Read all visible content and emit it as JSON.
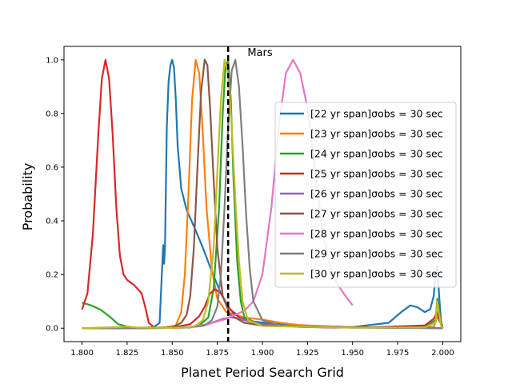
{
  "chart_data": {
    "type": "line",
    "title": "",
    "xlabel": "Planet Period Search Grid",
    "ylabel": "Probability",
    "xlim": [
      1.79,
      2.01
    ],
    "ylim": [
      -0.05,
      1.05
    ],
    "xticks": [
      "1.800",
      "1.825",
      "1.850",
      "1.875",
      "1.900",
      "1.925",
      "1.950",
      "1.975",
      "2.000"
    ],
    "yticks": [
      "0.0",
      "0.2",
      "0.4",
      "0.6",
      "0.8",
      "1.0"
    ],
    "grid": false,
    "legend_position": "center-right",
    "annotation": {
      "text": "Mars",
      "x": 1.9,
      "y": 1.02
    },
    "vline": {
      "x": 1.881,
      "style": "dashed",
      "color": "#000000"
    },
    "series": [
      {
        "name": "[22 yr span]σobs = 30 sec",
        "color": "#1f77b4",
        "points": [
          [
            1.8,
            0.0
          ],
          [
            1.82,
            0.0
          ],
          [
            1.835,
            0.002
          ],
          [
            1.84,
            0.005
          ],
          [
            1.843,
            0.02
          ],
          [
            1.845,
            0.31
          ],
          [
            1.8455,
            0.24
          ],
          [
            1.846,
            0.3
          ],
          [
            1.8465,
            0.53
          ],
          [
            1.847,
            0.75
          ],
          [
            1.848,
            0.92
          ],
          [
            1.849,
            0.98
          ],
          [
            1.85,
            1.0
          ],
          [
            1.851,
            0.97
          ],
          [
            1.852,
            0.85
          ],
          [
            1.853,
            0.68
          ],
          [
            1.855,
            0.52
          ],
          [
            1.858,
            0.44
          ],
          [
            1.862,
            0.38
          ],
          [
            1.867,
            0.3
          ],
          [
            1.872,
            0.21
          ],
          [
            1.877,
            0.13
          ],
          [
            1.882,
            0.07
          ],
          [
            1.888,
            0.04
          ],
          [
            1.895,
            0.025
          ],
          [
            1.905,
            0.017
          ],
          [
            1.92,
            0.01
          ],
          [
            1.95,
            0.004
          ],
          [
            1.97,
            0.02
          ],
          [
            1.977,
            0.06
          ],
          [
            1.982,
            0.085
          ],
          [
            1.986,
            0.078
          ],
          [
            1.99,
            0.06
          ],
          [
            1.993,
            0.07
          ],
          [
            1.995,
            0.12
          ],
          [
            1.996,
            0.2
          ],
          [
            1.997,
            0.23
          ],
          [
            1.998,
            0.12
          ],
          [
            1.999,
            0.03
          ],
          [
            2.0,
            0.0
          ]
        ]
      },
      {
        "name": "[23 yr span]σobs = 30 sec",
        "color": "#ff7f0e",
        "points": [
          [
            1.8,
            0.0
          ],
          [
            1.83,
            0.0
          ],
          [
            1.845,
            0.002
          ],
          [
            1.852,
            0.01
          ],
          [
            1.855,
            0.06
          ],
          [
            1.857,
            0.2
          ],
          [
            1.859,
            0.5
          ],
          [
            1.861,
            0.85
          ],
          [
            1.863,
            1.0
          ],
          [
            1.865,
            0.95
          ],
          [
            1.867,
            0.72
          ],
          [
            1.869,
            0.45
          ],
          [
            1.872,
            0.22
          ],
          [
            1.875,
            0.11
          ],
          [
            1.88,
            0.06
          ],
          [
            1.89,
            0.04
          ],
          [
            1.9,
            0.032
          ],
          [
            1.91,
            0.02
          ],
          [
            1.92,
            0.012
          ],
          [
            1.94,
            0.006
          ],
          [
            1.96,
            0.003
          ],
          [
            1.98,
            0.002
          ],
          [
            1.995,
            0.005
          ],
          [
            1.998,
            0.06
          ],
          [
            1.999,
            0.02
          ],
          [
            2.0,
            0.0
          ]
        ]
      },
      {
        "name": "[24 yr span]σobs = 30 sec",
        "color": "#2ca02c",
        "points": [
          [
            1.8,
            0.095
          ],
          [
            1.805,
            0.085
          ],
          [
            1.81,
            0.07
          ],
          [
            1.815,
            0.045
          ],
          [
            1.82,
            0.015
          ],
          [
            1.825,
            0.006
          ],
          [
            1.83,
            0.002
          ],
          [
            1.85,
            0.001
          ],
          [
            1.86,
            0.003
          ],
          [
            1.865,
            0.01
          ],
          [
            1.87,
            0.04
          ],
          [
            1.873,
            0.15
          ],
          [
            1.876,
            0.45
          ],
          [
            1.878,
            0.8
          ],
          [
            1.8795,
            0.97
          ],
          [
            1.881,
            1.0
          ],
          [
            1.8825,
            0.85
          ],
          [
            1.884,
            0.55
          ],
          [
            1.886,
            0.25
          ],
          [
            1.888,
            0.1
          ],
          [
            1.89,
            0.04
          ],
          [
            1.9,
            0.01
          ],
          [
            1.95,
            0.002
          ],
          [
            1.99,
            0.005
          ],
          [
            1.996,
            0.03
          ],
          [
            1.997,
            0.11
          ],
          [
            1.998,
            0.06
          ],
          [
            1.999,
            0.01
          ],
          [
            2.0,
            0.0
          ]
        ]
      },
      {
        "name": "[25 yr span]σobs = 30 sec",
        "color": "#d62728",
        "points": [
          [
            1.8,
            0.07
          ],
          [
            1.803,
            0.13
          ],
          [
            1.806,
            0.35
          ],
          [
            1.809,
            0.72
          ],
          [
            1.811,
            0.93
          ],
          [
            1.813,
            1.0
          ],
          [
            1.815,
            0.93
          ],
          [
            1.817,
            0.72
          ],
          [
            1.819,
            0.45
          ],
          [
            1.821,
            0.27
          ],
          [
            1.823,
            0.2
          ],
          [
            1.825,
            0.18
          ],
          [
            1.827,
            0.17
          ],
          [
            1.829,
            0.16
          ],
          [
            1.831,
            0.145
          ],
          [
            1.833,
            0.13
          ],
          [
            1.835,
            0.08
          ],
          [
            1.837,
            0.02
          ],
          [
            1.84,
            0.003
          ],
          [
            1.85,
            0.002
          ],
          [
            1.86,
            0.015
          ],
          [
            1.865,
            0.045
          ],
          [
            1.868,
            0.08
          ],
          [
            1.871,
            0.13
          ],
          [
            1.874,
            0.145
          ],
          [
            1.877,
            0.13
          ],
          [
            1.88,
            0.09
          ],
          [
            1.884,
            0.055
          ],
          [
            1.89,
            0.03
          ],
          [
            1.9,
            0.015
          ],
          [
            1.92,
            0.005
          ],
          [
            1.94,
            0.002
          ],
          [
            1.96,
            0.003
          ],
          [
            1.98,
            0.008
          ],
          [
            1.99,
            0.01
          ],
          [
            1.995,
            0.035
          ],
          [
            1.997,
            0.06
          ],
          [
            1.998,
            0.03
          ],
          [
            2.0,
            0.0
          ]
        ]
      },
      {
        "name": "[26 yr span]σobs = 30 sec",
        "color": "#9467bd",
        "points": [
          [
            1.8,
            0.0
          ],
          [
            1.83,
            0.0
          ],
          [
            1.85,
            0.002
          ],
          [
            1.86,
            0.005
          ],
          [
            1.866,
            0.01
          ],
          [
            1.87,
            0.015
          ],
          [
            1.874,
            0.025
          ],
          [
            1.878,
            0.035
          ],
          [
            1.882,
            0.04
          ],
          [
            1.886,
            0.038
          ],
          [
            1.89,
            0.03
          ],
          [
            1.9,
            0.015
          ],
          [
            1.92,
            0.005
          ],
          [
            1.95,
            0.002
          ],
          [
            1.99,
            0.003
          ],
          [
            2.0,
            0.0
          ]
        ]
      },
      {
        "name": "[27 yr span]σobs = 30 sec",
        "color": "#8c564b",
        "points": [
          [
            1.8,
            0.0
          ],
          [
            1.83,
            0.0
          ],
          [
            1.85,
            0.003
          ],
          [
            1.855,
            0.02
          ],
          [
            1.858,
            0.05
          ],
          [
            1.86,
            0.12
          ],
          [
            1.862,
            0.3
          ],
          [
            1.864,
            0.6
          ],
          [
            1.866,
            0.88
          ],
          [
            1.868,
            1.0
          ],
          [
            1.8695,
            0.98
          ],
          [
            1.871,
            0.82
          ],
          [
            1.873,
            0.55
          ],
          [
            1.875,
            0.3
          ],
          [
            1.878,
            0.12
          ],
          [
            1.882,
            0.05
          ],
          [
            1.89,
            0.02
          ],
          [
            1.9,
            0.01
          ],
          [
            1.95,
            0.003
          ],
          [
            2.0,
            0.0
          ]
        ]
      },
      {
        "name": "[28 yr span]σobs = 30 sec",
        "color": "#e377c2",
        "points": [
          [
            1.85,
            0.0
          ],
          [
            1.86,
            0.005
          ],
          [
            1.87,
            0.015
          ],
          [
            1.88,
            0.035
          ],
          [
            1.89,
            0.065
          ],
          [
            1.895,
            0.1
          ],
          [
            1.9,
            0.2
          ],
          [
            1.905,
            0.45
          ],
          [
            1.909,
            0.75
          ],
          [
            1.913,
            0.95
          ],
          [
            1.917,
            1.0
          ],
          [
            1.921,
            0.95
          ],
          [
            1.925,
            0.82
          ],
          [
            1.929,
            0.6
          ],
          [
            1.933,
            0.38
          ],
          [
            1.937,
            0.24
          ],
          [
            1.941,
            0.17
          ],
          [
            1.945,
            0.13
          ],
          [
            1.95,
            0.085
          ]
        ]
      },
      {
        "name": "[29 yr span]σobs = 30 sec",
        "color": "#7f7f7f",
        "points": [
          [
            1.8,
            0.0
          ],
          [
            1.84,
            0.0
          ],
          [
            1.86,
            0.003
          ],
          [
            1.868,
            0.01
          ],
          [
            1.872,
            0.03
          ],
          [
            1.875,
            0.08
          ],
          [
            1.877,
            0.2
          ],
          [
            1.879,
            0.45
          ],
          [
            1.881,
            0.75
          ],
          [
            1.883,
            0.96
          ],
          [
            1.885,
            1.0
          ],
          [
            1.887,
            0.9
          ],
          [
            1.889,
            0.68
          ],
          [
            1.891,
            0.42
          ],
          [
            1.893,
            0.22
          ],
          [
            1.895,
            0.1
          ],
          [
            1.9,
            0.03
          ],
          [
            1.91,
            0.01
          ],
          [
            1.95,
            0.002
          ],
          [
            2.0,
            0.0
          ]
        ]
      },
      {
        "name": "[30 yr span]σobs = 30 sec",
        "color": "#bcbd22",
        "points": [
          [
            1.8,
            0.0
          ],
          [
            1.82,
            0.004
          ],
          [
            1.825,
            0.006
          ],
          [
            1.83,
            0.003
          ],
          [
            1.85,
            0.001
          ],
          [
            1.862,
            0.005
          ],
          [
            1.867,
            0.03
          ],
          [
            1.87,
            0.1
          ],
          [
            1.873,
            0.3
          ],
          [
            1.875,
            0.58
          ],
          [
            1.877,
            0.85
          ],
          [
            1.879,
            1.0
          ],
          [
            1.881,
            0.95
          ],
          [
            1.883,
            0.75
          ],
          [
            1.885,
            0.48
          ],
          [
            1.887,
            0.25
          ],
          [
            1.889,
            0.1
          ],
          [
            1.892,
            0.03
          ],
          [
            1.9,
            0.008
          ],
          [
            1.95,
            0.002
          ],
          [
            1.99,
            0.003
          ],
          [
            1.996,
            0.02
          ],
          [
            1.997,
            0.1
          ],
          [
            1.998,
            0.05
          ],
          [
            1.999,
            0.01
          ],
          [
            2.0,
            0.0
          ]
        ]
      }
    ]
  }
}
